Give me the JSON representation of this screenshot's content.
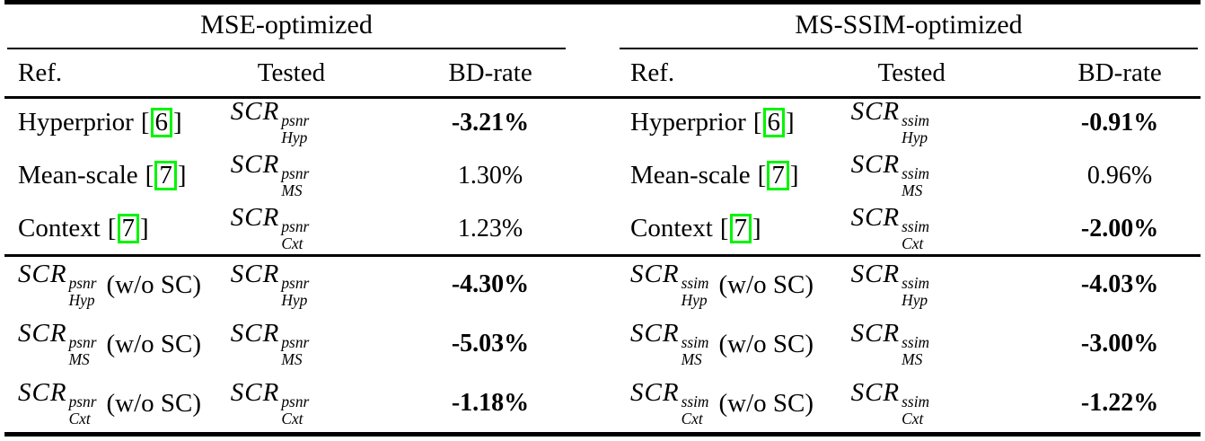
{
  "colors": {
    "text": "#000000",
    "background": "#ffffff",
    "citation_box_border": "#00f500"
  },
  "punctuation": {
    "cite_open": "[",
    "cite_close": "]"
  },
  "groups": [
    {
      "title": "MSE-optimized",
      "columns": {
        "ref": "Ref.",
        "tested": "Tested",
        "bdrate": "BD-rate"
      },
      "rows": [
        {
          "ref_label": "Hyperprior",
          "ref_cite": "6",
          "tested": {
            "base": "SCR",
            "sup": "psnr",
            "sub": "Hyp"
          },
          "bdrate": "-3.21%",
          "bold": true
        },
        {
          "ref_label": "Mean-scale",
          "ref_cite": "7",
          "tested": {
            "base": "SCR",
            "sup": "psnr",
            "sub": "MS"
          },
          "bdrate": "1.30%",
          "bold": false
        },
        {
          "ref_label": "Context",
          "ref_cite": "7",
          "tested": {
            "base": "SCR",
            "sup": "psnr",
            "sub": "Cxt"
          },
          "bdrate": "1.23%",
          "bold": false
        },
        {
          "ref_math": {
            "base": "SCR",
            "sup": "psnr",
            "sub": "Hyp"
          },
          "ref_suffix": "(w/o SC)",
          "tested": {
            "base": "SCR",
            "sup": "psnr",
            "sub": "Hyp"
          },
          "bdrate": "-4.30%",
          "bold": true
        },
        {
          "ref_math": {
            "base": "SCR",
            "sup": "psnr",
            "sub": "MS"
          },
          "ref_suffix": "(w/o SC)",
          "tested": {
            "base": "SCR",
            "sup": "psnr",
            "sub": "MS"
          },
          "bdrate": "-5.03%",
          "bold": true
        },
        {
          "ref_math": {
            "base": "SCR",
            "sup": "psnr",
            "sub": "Cxt"
          },
          "ref_suffix": "(w/o SC)",
          "tested": {
            "base": "SCR",
            "sup": "psnr",
            "sub": "Cxt"
          },
          "bdrate": "-1.18%",
          "bold": true
        }
      ]
    },
    {
      "title": "MS-SSIM-optimized",
      "columns": {
        "ref": "Ref.",
        "tested": "Tested",
        "bdrate": "BD-rate"
      },
      "rows": [
        {
          "ref_label": "Hyperprior",
          "ref_cite": "6",
          "tested": {
            "base": "SCR",
            "sup": "ssim",
            "sub": "Hyp"
          },
          "bdrate": "-0.91%",
          "bold": true
        },
        {
          "ref_label": "Mean-scale",
          "ref_cite": "7",
          "tested": {
            "base": "SCR",
            "sup": "ssim",
            "sub": "MS"
          },
          "bdrate": "0.96%",
          "bold": false
        },
        {
          "ref_label": "Context",
          "ref_cite": "7",
          "tested": {
            "base": "SCR",
            "sup": "ssim",
            "sub": "Cxt"
          },
          "bdrate": "-2.00%",
          "bold": true
        },
        {
          "ref_math": {
            "base": "SCR",
            "sup": "ssim",
            "sub": "Hyp"
          },
          "ref_suffix": "(w/o SC)",
          "tested": {
            "base": "SCR",
            "sup": "ssim",
            "sub": "Hyp"
          },
          "bdrate": "-4.03%",
          "bold": true
        },
        {
          "ref_math": {
            "base": "SCR",
            "sup": "ssim",
            "sub": "MS"
          },
          "ref_suffix": "(w/o SC)",
          "tested": {
            "base": "SCR",
            "sup": "ssim",
            "sub": "MS"
          },
          "bdrate": "-3.00%",
          "bold": true
        },
        {
          "ref_math": {
            "base": "SCR",
            "sup": "ssim",
            "sub": "Cxt"
          },
          "ref_suffix": "(w/o SC)",
          "tested": {
            "base": "SCR",
            "sup": "ssim",
            "sub": "Cxt"
          },
          "bdrate": "-1.22%",
          "bold": true
        }
      ]
    }
  ]
}
